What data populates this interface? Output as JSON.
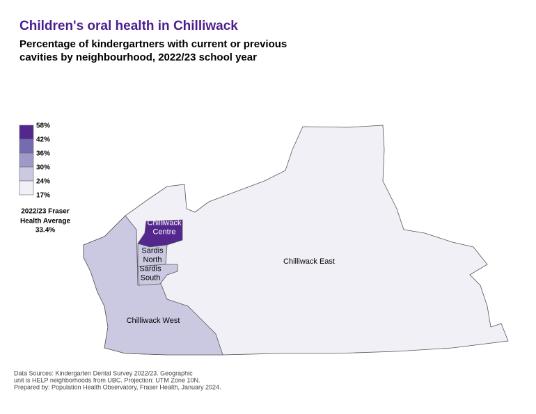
{
  "header": {
    "title": "Children's oral health in Chilliwack",
    "subtitle": [
      "Percentage of kindergartners with current or previous",
      "cavities by neighbourhood, 2022/23 school year"
    ]
  },
  "legend": {
    "breaks": [
      "58%",
      "42%",
      "36%",
      "30%",
      "24%",
      "17%"
    ],
    "colors": [
      "#54278f",
      "#756bb1",
      "#9e9ac8",
      "#cbc9e2",
      "#f2f0f7"
    ]
  },
  "average": [
    "2022/23 Fraser",
    "Health Average",
    "33.4%"
  ],
  "regions": [
    {
      "name": [
        "Chilliwack",
        "Centre"
      ],
      "color": "#54278f"
    },
    {
      "name": [
        "Sardis",
        "North"
      ],
      "color": "#cbc9e2"
    },
    {
      "name": [
        "Sardis",
        "South"
      ],
      "color": "#f2f0f7"
    },
    {
      "name": [
        "Chilliwack East"
      ],
      "color": "#cbc9e2"
    },
    {
      "name": [
        "Chilliwack West"
      ],
      "color": "#cbc9e2"
    }
  ],
  "footnote": [
    "Data Sources: Kindergarten Dental Survey 2022/23. Geographic",
    "unit is HELP neighborhoods from UBC. Projection: UTM Zone 10N.",
    "Prepared by: Population Health Observatory, Fraser Health, January 2024."
  ]
}
